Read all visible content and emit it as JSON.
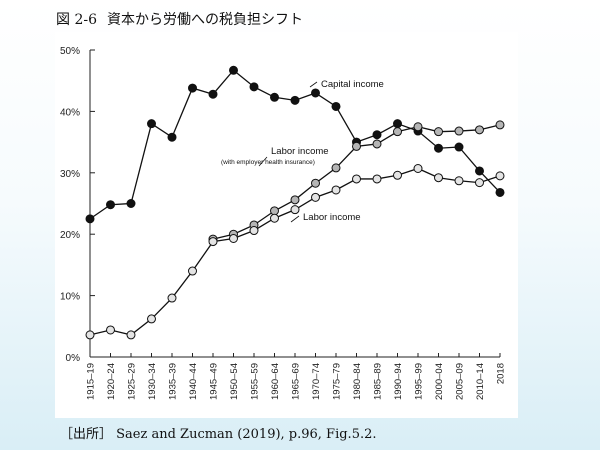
{
  "slide": {
    "figure_number": "図 2-6",
    "title": "資本から労働への税負担シフト",
    "source": "［出所］ Saez and Zucman (2019), p.96, Fig.5.2."
  },
  "colors": {
    "capital": "#111111",
    "labor_with_health": "#b5b5b5",
    "labor": "#e4e4e4",
    "axis": "#222222"
  },
  "chart_data": {
    "type": "line",
    "title": "",
    "xlabel": "",
    "ylabel": "",
    "ylim": [
      0,
      50
    ],
    "yticks": [
      0,
      10,
      20,
      30,
      40,
      50
    ],
    "ytick_labels": [
      "0%",
      "10%",
      "20%",
      "30%",
      "40%",
      "50%"
    ],
    "grid": false,
    "categories": [
      "1915–19",
      "1920–24",
      "1925–29",
      "1930–34",
      "1935–39",
      "1940–44",
      "1945–49",
      "1950–54",
      "1955–59",
      "1960–64",
      "1965–69",
      "1970–74",
      "1975–79",
      "1980–84",
      "1985–89",
      "1990–94",
      "1995–99",
      "2000–04",
      "2005–09",
      "2010–14",
      "2018"
    ],
    "series": [
      {
        "name": "Capital income",
        "marker_fill": "#111111",
        "values": [
          22.5,
          24.8,
          25.0,
          38.0,
          35.8,
          43.8,
          42.8,
          46.7,
          44.0,
          42.3,
          41.8,
          43.0,
          40.8,
          35.0,
          36.2,
          38.0,
          36.8,
          34.0,
          34.2,
          30.3,
          26.8
        ]
      },
      {
        "name": "Labor income",
        "sublabel": "(with employer health insurance)",
        "marker_fill": "#b5b5b5",
        "values": [
          null,
          null,
          null,
          null,
          null,
          null,
          19.2,
          20.0,
          21.5,
          23.8,
          25.6,
          28.3,
          30.8,
          34.3,
          34.7,
          36.7,
          37.5,
          36.7,
          36.8,
          37.0,
          37.8
        ]
      },
      {
        "name": "Labor income",
        "marker_fill": "#e4e4e4",
        "values": [
          3.6,
          4.4,
          3.6,
          6.2,
          9.6,
          14.0,
          18.8,
          19.3,
          20.6,
          22.6,
          24.0,
          26.0,
          27.2,
          29.0,
          29.0,
          29.6,
          30.7,
          29.2,
          28.7,
          28.4,
          29.5
        ]
      }
    ]
  }
}
